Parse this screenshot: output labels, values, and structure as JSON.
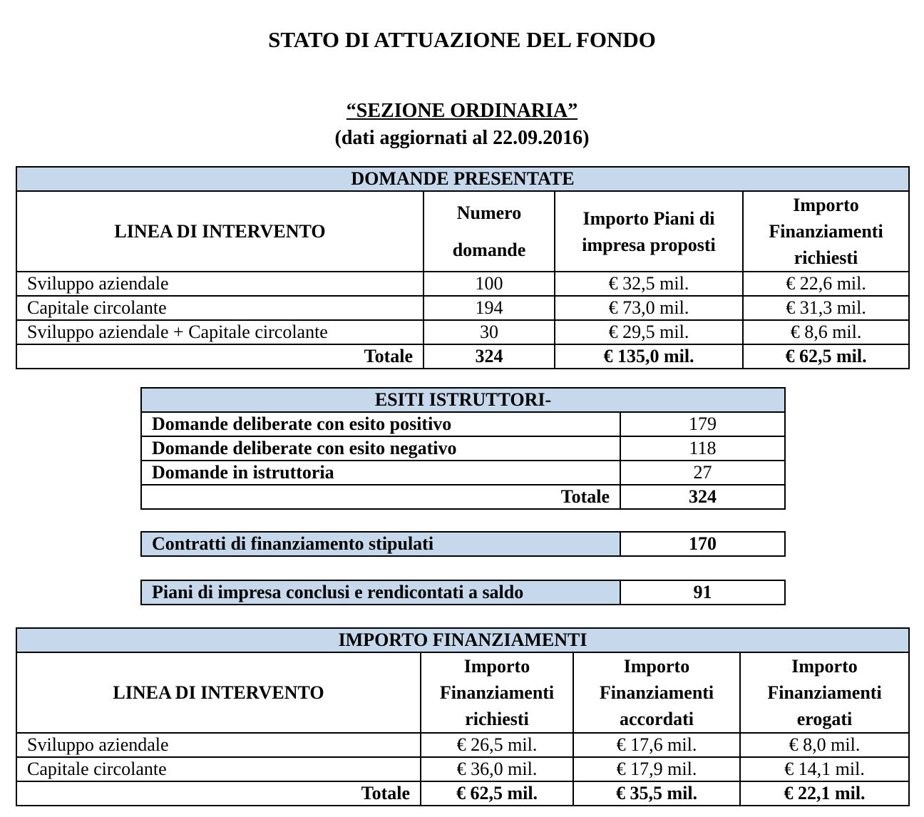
{
  "title": "STATO DI ATTUAZIONE DEL FONDO",
  "section": "“SEZIONE ORDINARIA”",
  "updated": "(dati aggiornati al 22.09.2016)",
  "header_color": "#c6d9ec",
  "domande": {
    "heading": "DOMANDE PRESENTATE",
    "columns": [
      "LINEA DI INTERVENTO",
      "Numero domande",
      "Importo Piani di impresa proposti",
      "Importo Finanziamenti richiesti"
    ],
    "rows": [
      [
        "Sviluppo aziendale",
        "100",
        "€ 32,5 mil.",
        "€ 22,6 mil."
      ],
      [
        "Capitale circolante",
        "194",
        "€ 73,0 mil.",
        "€ 31,3 mil."
      ],
      [
        "Sviluppo aziendale + Capitale circolante",
        "30",
        "€ 29,5 mil.",
        "€ 8,6 mil."
      ]
    ],
    "total": [
      "Totale",
      "324",
      "€ 135,0 mil.",
      "€ 62,5 mil."
    ]
  },
  "esiti": {
    "heading": "ESITI ISTRUTTORI-",
    "rows": [
      [
        "Domande deliberate con esito positivo",
        "179"
      ],
      [
        "Domande deliberate con esito negativo",
        "118"
      ],
      [
        "Domande in istruttoria",
        "27"
      ]
    ],
    "total": [
      "Totale",
      "324"
    ]
  },
  "contratti": [
    "Contratti di finanziamento stipulati",
    "170"
  ],
  "piani": [
    "Piani di impresa conclusi e rendicontati a saldo",
    "91"
  ],
  "importo": {
    "heading": "IMPORTO FINANZIAMENTI",
    "columns": [
      "LINEA DI INTERVENTO",
      "Importo Finanziamenti richiesti",
      "Importo Finanziamenti accordati",
      "Importo Finanziamenti erogati"
    ],
    "rows": [
      [
        "Sviluppo aziendale",
        "€ 26,5 mil.",
        "€ 17,6 mil.",
        "€ 8,0 mil."
      ],
      [
        "Capitale circolante",
        "€ 36,0 mil.",
        "€ 17,9 mil.",
        "€ 14,1 mil."
      ]
    ],
    "total": [
      "Totale",
      "€ 62,5 mil.",
      "€ 35,5 mil.",
      "€ 22,1 mil."
    ]
  }
}
